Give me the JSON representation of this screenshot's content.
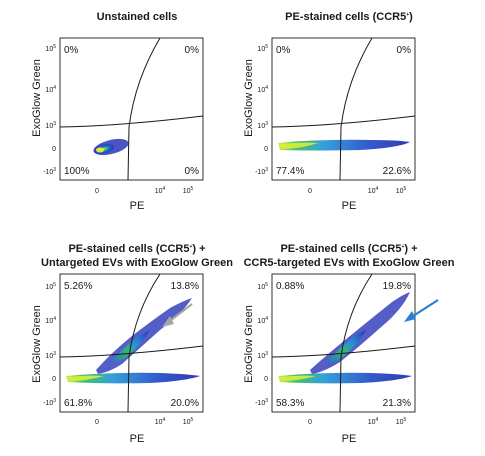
{
  "chart_data": [
    {
      "type": "scatter",
      "title": "Unstained cells",
      "title_lines": [
        "Unstained cells"
      ],
      "xlabel": "PE",
      "ylabel": "ExoGlow Green",
      "x_ticks": [
        "0",
        "10^4",
        "10^5"
      ],
      "y_ticks": [
        "10^5",
        "10^4",
        "10^3",
        "0",
        "-10^3"
      ],
      "quadrants": {
        "top_left": "0%",
        "top_right": "0%",
        "bottom_left": "100%",
        "bottom_right": "0%"
      },
      "populations": [
        "compact cluster near origin, double negative"
      ],
      "arrow": null
    },
    {
      "type": "scatter",
      "title": "PE-stained cells (CCR5+)",
      "title_lines": [
        "PE-stained cells (CCR5+)"
      ],
      "xlabel": "PE",
      "ylabel": "ExoGlow Green",
      "x_ticks": [
        "0",
        "10^4",
        "10^5"
      ],
      "y_ticks": [
        "10^5",
        "10^4",
        "10^3",
        "0",
        "-10^3"
      ],
      "quadrants": {
        "top_left": "0%",
        "top_right": "0%",
        "bottom_left": "77.4%",
        "bottom_right": "22.6%"
      },
      "populations": [
        "horizontal band spreading along PE axis"
      ],
      "arrow": null
    },
    {
      "type": "scatter",
      "title": "PE-stained cells (CCR5+) + Untargeted EVs with ExoGlow Green",
      "title_lines": [
        "PE-stained cells (CCR5+) +",
        "Untargeted EVs with ExoGlow Green"
      ],
      "xlabel": "PE",
      "ylabel": "ExoGlow Green",
      "x_ticks": [
        "0",
        "10^4",
        "10^5"
      ],
      "y_ticks": [
        "10^5",
        "10^4",
        "10^3",
        "0",
        "-10^3"
      ],
      "quadrants": {
        "top_left": "5.26%",
        "top_right": "13.8%",
        "bottom_left": "61.8%",
        "bottom_right": "20.0%"
      },
      "populations": [
        "horizontal band",
        "diagonal band into ExoGlow Green positive region"
      ],
      "arrow": {
        "color": "#a6a6a6"
      }
    },
    {
      "type": "scatter",
      "title": "PE-stained cells (CCR5+) + CCR5-targeted EVs with ExoGlow Green",
      "title_lines": [
        "PE-stained cells (CCR5+) +",
        "CCR5-targeted EVs with ExoGlow Green"
      ],
      "xlabel": "PE",
      "ylabel": "ExoGlow Green",
      "x_ticks": [
        "0",
        "10^4",
        "10^5"
      ],
      "y_ticks": [
        "10^5",
        "10^4",
        "10^3",
        "0",
        "-10^3"
      ],
      "quadrants": {
        "top_left": "0.88%",
        "top_right": "19.8%",
        "bottom_left": "58.3%",
        "bottom_right": "21.3%"
      },
      "populations": [
        "horizontal band",
        "diagonal band into double positive region"
      ],
      "arrow": {
        "color": "#2b7fd1"
      }
    }
  ]
}
